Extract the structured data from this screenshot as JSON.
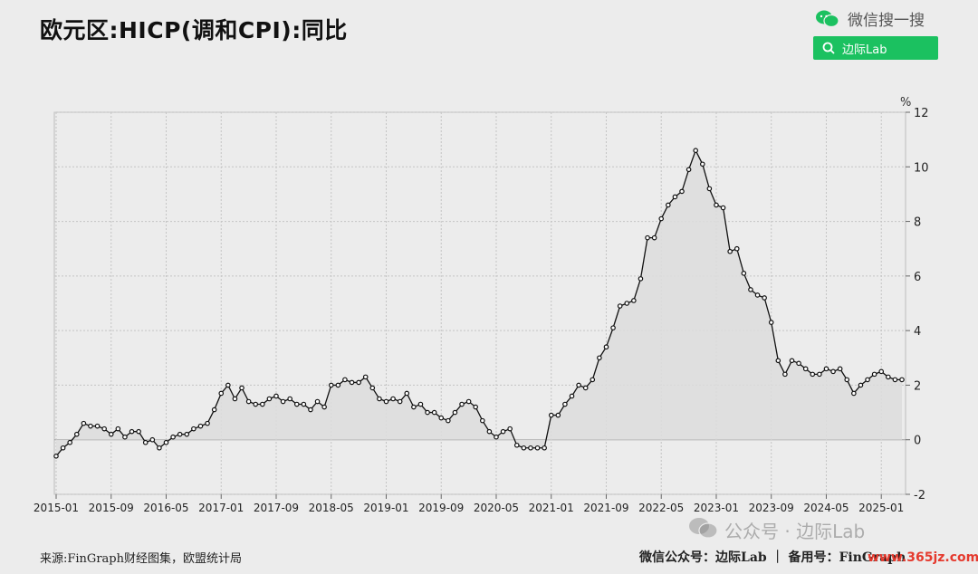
{
  "title": "欧元区:HICP(调和CPI):同比",
  "header": {
    "wechat_search_label": "微信搜一搜",
    "search_button_label": "边际Lab",
    "button_color": "#1bc160"
  },
  "footer": {
    "source": "来源:FinGraph财经图集，欧盟统计局",
    "right_text": "微信公众号：边际Lab ｜ 备用号：FinGraph",
    "watermark": "公众号 · 边际Lab",
    "site_watermark": "www.365jz.com"
  },
  "chart_data": {
    "type": "area",
    "unit_label": "%",
    "y_axis_position": "right",
    "ylim": [
      -2,
      12
    ],
    "yticks": [
      -2,
      0,
      2,
      4,
      6,
      8,
      10,
      12
    ],
    "xticks": [
      "2015-01",
      "2015-09",
      "2016-05",
      "2017-01",
      "2017-09",
      "2018-05",
      "2019-01",
      "2019-09",
      "2020-05",
      "2021-01",
      "2021-09",
      "2022-05",
      "2023-01",
      "2023-09",
      "2024-05",
      "2025-01"
    ],
    "grid": true,
    "line_color": "#111111",
    "fill_color": "#dddddd",
    "series": [
      {
        "start": "2015-01",
        "values": [
          -0.6,
          -0.3,
          -0.1,
          0.2,
          0.6,
          0.5,
          0.5,
          0.4,
          0.2,
          0.4,
          0.1,
          0.3,
          0.3,
          -0.1,
          0.0,
          -0.3,
          -0.1,
          0.1,
          0.2,
          0.2,
          0.4,
          0.5,
          0.6,
          1.1,
          1.7,
          2.0,
          1.5,
          1.9,
          1.4,
          1.3,
          1.3,
          1.5,
          1.6,
          1.4,
          1.5,
          1.3,
          1.3,
          1.1,
          1.4,
          1.2,
          2.0,
          2.0,
          2.2,
          2.1,
          2.1,
          2.3,
          1.9,
          1.5,
          1.4,
          1.5,
          1.4,
          1.7,
          1.2,
          1.3,
          1.0,
          1.0,
          0.8,
          0.7,
          1.0,
          1.3,
          1.4,
          1.2,
          0.7,
          0.3,
          0.1,
          0.3,
          0.4,
          -0.2,
          -0.3,
          -0.3,
          -0.3,
          -0.3,
          0.9,
          0.9,
          1.3,
          1.6,
          2.0,
          1.9,
          2.2,
          3.0,
          3.4,
          4.1,
          4.9,
          5.0,
          5.1,
          5.9,
          7.4,
          7.4,
          8.1,
          8.6,
          8.9,
          9.1,
          9.9,
          10.6,
          10.1,
          9.2,
          8.6,
          8.5,
          6.9,
          7.0,
          6.1,
          5.5,
          5.3,
          5.2,
          4.3,
          2.9,
          2.4,
          2.9,
          2.8,
          2.6,
          2.4,
          2.4,
          2.6,
          2.5,
          2.6,
          2.2,
          1.7,
          2.0,
          2.2,
          2.4,
          2.5,
          2.3,
          2.2,
          2.2
        ]
      }
    ]
  }
}
